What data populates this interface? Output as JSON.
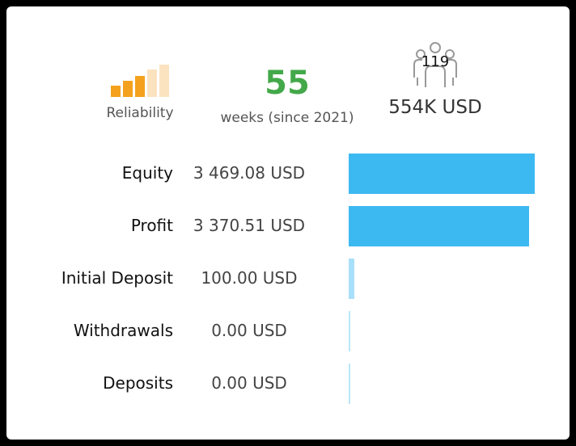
{
  "header": {
    "reliability_label": "Reliability",
    "reliability_level": 3,
    "reliability_max": 5,
    "weeks_value": "55",
    "weeks_label": "weeks (since 2021)",
    "subscribers": "119",
    "subscriber_funds": "554K USD"
  },
  "colors": {
    "reliability_on": "#f4a21d",
    "reliability_off": "#fbe3c0",
    "weeks_green": "#43a84a",
    "bar_blue": "#3db9f2"
  },
  "rows": [
    {
      "label": "Equity",
      "value": "3 469.08 USD",
      "amount": 3469.08
    },
    {
      "label": "Profit",
      "value": "3 370.51 USD",
      "amount": 3370.51
    },
    {
      "label": "Initial Deposit",
      "value": "100.00 USD",
      "amount": 100.0
    },
    {
      "label": "Withdrawals",
      "value": "0.00 USD",
      "amount": 0
    },
    {
      "label": "Deposits",
      "value": "0.00 USD",
      "amount": 0
    }
  ]
}
